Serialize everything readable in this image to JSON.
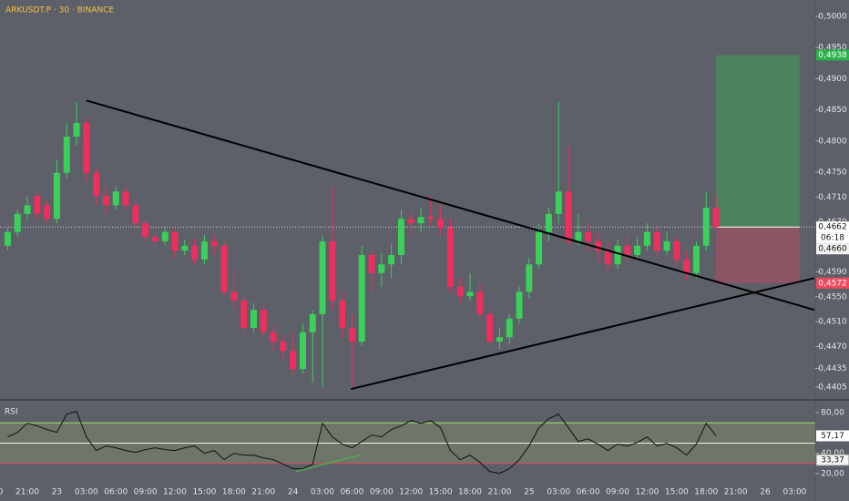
{
  "chart_data": [
    {
      "type": "candlestick",
      "title": "ARKUSDT.P · 30 · BINANCE",
      "up_color": "#3ad05a",
      "down_color": "#ee2f5e",
      "background": "#5d5f69",
      "candles": {
        "open": [
          0.4632,
          0.4654,
          0.4683,
          0.4712,
          0.4697,
          0.4675,
          0.4749,
          0.4807,
          0.4829,
          0.4749,
          0.4712,
          0.4697,
          0.4719,
          0.4697,
          0.4668,
          0.4646,
          0.4639,
          0.4654,
          0.4624,
          0.4632,
          0.461,
          0.4639,
          0.4632,
          0.4558,
          0.4544,
          0.45,
          0.4529,
          0.4493,
          0.4478,
          0.4463,
          0.4434,
          0.4493,
          0.4522,
          0.4639,
          0.4544,
          0.45,
          0.4478,
          0.4617,
          0.4588,
          0.4602,
          0.4617,
          0.4675,
          0.4668,
          0.4678,
          0.4675,
          0.4661,
          0.4566,
          0.4551,
          0.4558,
          0.4522,
          0.4478,
          0.4485,
          0.4515,
          0.4558,
          0.4602,
          0.4654,
          0.4683,
          0.4719,
          0.4639,
          0.4654,
          0.4639,
          0.4624,
          0.4602,
          0.4632,
          0.4617,
          0.4632,
          0.4654,
          0.4624,
          0.4639,
          0.461,
          0.4588,
          0.4632,
          0.4693
        ],
        "high": [
          0.4661,
          0.469,
          0.4712,
          0.4719,
          0.4705,
          0.477,
          0.4829,
          0.4863,
          0.4836,
          0.4756,
          0.4727,
          0.4727,
          0.4727,
          0.4705,
          0.4675,
          0.4661,
          0.4661,
          0.4661,
          0.4642,
          0.4642,
          0.4649,
          0.4649,
          0.4639,
          0.4595,
          0.4554,
          0.454,
          0.4537,
          0.4503,
          0.4488,
          0.4493,
          0.4507,
          0.4529,
          0.4649,
          0.4727,
          0.4558,
          0.4522,
          0.4632,
          0.4624,
          0.462,
          0.4635,
          0.469,
          0.4687,
          0.4693,
          0.4712,
          0.4697,
          0.4675,
          0.458,
          0.4588,
          0.4573,
          0.4529,
          0.45,
          0.4522,
          0.4566,
          0.4613,
          0.4668,
          0.4693,
          0.4863,
          0.4792,
          0.4683,
          0.4668,
          0.4654,
          0.4639,
          0.4642,
          0.4649,
          0.4646,
          0.4668,
          0.4664,
          0.4654,
          0.4646,
          0.4624,
          0.4639,
          0.4719,
          0.4712
        ],
        "low": [
          0.4624,
          0.4646,
          0.4675,
          0.4675,
          0.4668,
          0.4668,
          0.4741,
          0.4792,
          0.4734,
          0.4697,
          0.4683,
          0.469,
          0.469,
          0.4661,
          0.4639,
          0.4632,
          0.4632,
          0.4613,
          0.4617,
          0.4602,
          0.4602,
          0.462,
          0.4551,
          0.4529,
          0.4488,
          0.4493,
          0.4485,
          0.4463,
          0.4449,
          0.4427,
          0.4427,
          0.4412,
          0.4405,
          0.4529,
          0.4485,
          0.4405,
          0.4471,
          0.4558,
          0.4566,
          0.458,
          0.4602,
          0.4649,
          0.4654,
          0.4664,
          0.4649,
          0.4558,
          0.454,
          0.4544,
          0.4515,
          0.4471,
          0.4466,
          0.4474,
          0.4507,
          0.4547,
          0.4595,
          0.4639,
          0.4668,
          0.4632,
          0.4632,
          0.4624,
          0.4605,
          0.4591,
          0.4595,
          0.4605,
          0.461,
          0.4624,
          0.4613,
          0.4617,
          0.4602,
          0.4576,
          0.458,
          0.4624,
          0.4661
        ],
        "close": [
          0.4654,
          0.4683,
          0.4697,
          0.4683,
          0.4675,
          0.4749,
          0.4807,
          0.4829,
          0.4749,
          0.4712,
          0.4697,
          0.4719,
          0.4697,
          0.4668,
          0.4646,
          0.4639,
          0.4654,
          0.4624,
          0.4632,
          0.461,
          0.4639,
          0.4632,
          0.4558,
          0.4544,
          0.45,
          0.4529,
          0.4493,
          0.4478,
          0.4463,
          0.4434,
          0.4493,
          0.4522,
          0.4639,
          0.4544,
          0.45,
          0.4478,
          0.4617,
          0.4588,
          0.4602,
          0.4617,
          0.4675,
          0.4668,
          0.4678,
          0.4675,
          0.4661,
          0.4566,
          0.4551,
          0.4558,
          0.4522,
          0.4478,
          0.4485,
          0.4515,
          0.4558,
          0.4602,
          0.4654,
          0.4683,
          0.4719,
          0.4639,
          0.4654,
          0.4639,
          0.4624,
          0.4602,
          0.4632,
          0.4617,
          0.4632,
          0.4654,
          0.4624,
          0.4639,
          0.461,
          0.4588,
          0.4632,
          0.4693,
          0.4662
        ]
      },
      "xlim": [
        -0.78,
        82.09
      ],
      "xticks": [
        {
          "value": -1,
          "label": "00"
        },
        {
          "value": 2,
          "label": "21:00"
        },
        {
          "value": 5,
          "label": "23"
        },
        {
          "value": 8,
          "label": "03:00"
        },
        {
          "value": 11,
          "label": "06:00"
        },
        {
          "value": 14,
          "label": "09:00"
        },
        {
          "value": 17,
          "label": "12:00"
        },
        {
          "value": 20,
          "label": "15:00"
        },
        {
          "value": 23,
          "label": "18:00"
        },
        {
          "value": 26,
          "label": "21:00"
        },
        {
          "value": 29,
          "label": "24"
        },
        {
          "value": 32,
          "label": "03:00"
        },
        {
          "value": 35,
          "label": "06:00"
        },
        {
          "value": 38,
          "label": "09:00"
        },
        {
          "value": 41,
          "label": "12:00"
        },
        {
          "value": 44,
          "label": "15:00"
        },
        {
          "value": 47,
          "label": "18:00"
        },
        {
          "value": 50,
          "label": "21:00"
        },
        {
          "value": 53,
          "label": "25"
        },
        {
          "value": 56,
          "label": "03:00"
        },
        {
          "value": 59,
          "label": "06:00"
        },
        {
          "value": 62,
          "label": "09:00"
        },
        {
          "value": 65,
          "label": "12:00"
        },
        {
          "value": 68,
          "label": "15:00"
        },
        {
          "value": 71,
          "label": "18:00"
        },
        {
          "value": 74,
          "label": "21:00"
        },
        {
          "value": 77,
          "label": "26"
        },
        {
          "value": 80,
          "label": "03:00"
        }
      ],
      "ylim": [
        0.4386,
        0.50263
      ],
      "yticks": [
        {
          "value": 0.5,
          "label": "0,5000"
        },
        {
          "value": 0.495,
          "label": "0,4950"
        },
        {
          "value": 0.49,
          "label": "0,4900"
        },
        {
          "value": 0.485,
          "label": "0,4850"
        },
        {
          "value": 0.48,
          "label": "0,4800"
        },
        {
          "value": 0.475,
          "label": "0,4750"
        },
        {
          "value": 0.471,
          "label": "0,4710"
        },
        {
          "value": 0.467,
          "label": "0,4670"
        },
        {
          "value": 0.459,
          "label": "0,4590"
        },
        {
          "value": 0.455,
          "label": "0,4550"
        },
        {
          "value": 0.451,
          "label": "0,4510"
        },
        {
          "value": 0.447,
          "label": "0,4470"
        },
        {
          "value": 0.4435,
          "label": "0,4435"
        },
        {
          "value": 0.4405,
          "label": "0,4405"
        }
      ],
      "price_labels": [
        {
          "value": 0.4938,
          "label": "0,4938",
          "color": "#2bb24c"
        },
        {
          "value": 0.4662,
          "label": "0,4662",
          "color": "#ffffff"
        },
        {
          "value": 0.466,
          "label": "0,4660",
          "color": "#f2f2f2"
        },
        {
          "value": 0.4572,
          "label": "0,4572",
          "color": "#ef4a5e"
        }
      ],
      "countdown": "06:18",
      "position": {
        "start": 72,
        "end": 80.5,
        "target": 0.4938,
        "entry": 0.4662,
        "stop": 0.4572
      },
      "trendlines": [
        {
          "points": [
            [
              8,
              0.4865
            ],
            [
              82,
              0.4529
            ]
          ],
          "color": "#000000"
        },
        {
          "points": [
            [
              34.9,
              0.4402
            ],
            [
              82,
              0.458
            ]
          ],
          "color": "#000000"
        }
      ]
    },
    {
      "type": "line",
      "title": "RSI",
      "color": "#111111",
      "values": [
        56.1,
        60.6,
        69.5,
        66.9,
        63.3,
        60.6,
        78.5,
        81.2,
        56.1,
        42.7,
        47.2,
        45.4,
        42.7,
        40.9,
        43.6,
        45.4,
        43.6,
        42.7,
        45.4,
        47.2,
        40,
        42.7,
        33.7,
        40,
        38.2,
        38.2,
        35.5,
        33.7,
        29.3,
        24.8,
        24.8,
        29.3,
        69.5,
        56.1,
        49,
        45.4,
        51.6,
        57.9,
        56.1,
        63.3,
        66.9,
        72.2,
        69.5,
        72.2,
        65.1,
        42.7,
        33.7,
        38.2,
        31,
        22.1,
        20.3,
        24.8,
        33.7,
        47.2,
        65.1,
        74,
        78.5,
        65.1,
        51.6,
        54.3,
        49,
        42.7,
        49,
        47.2,
        50.7,
        56.1,
        47.2,
        49.8,
        45.4,
        38.2,
        49,
        69.5,
        57.17
      ],
      "value_labels": {
        "72": "57,17"
      },
      "ylim": [
        11,
        91.6
      ],
      "yticks": [
        {
          "value": 80,
          "label": "80,00"
        },
        {
          "value": 40,
          "label": "40,00"
        },
        {
          "value": 20,
          "label": "20,00"
        }
      ],
      "bands": {
        "upper": 70,
        "middle": 50,
        "lower": 30
      },
      "markers": [
        {
          "value": 33.37,
          "label": "33,37"
        }
      ],
      "trendlines": [
        {
          "points": [
            [
              29.3,
              22.1
            ],
            [
              35.8,
              38.2
            ]
          ],
          "color": "#4caf50"
        }
      ]
    }
  ]
}
